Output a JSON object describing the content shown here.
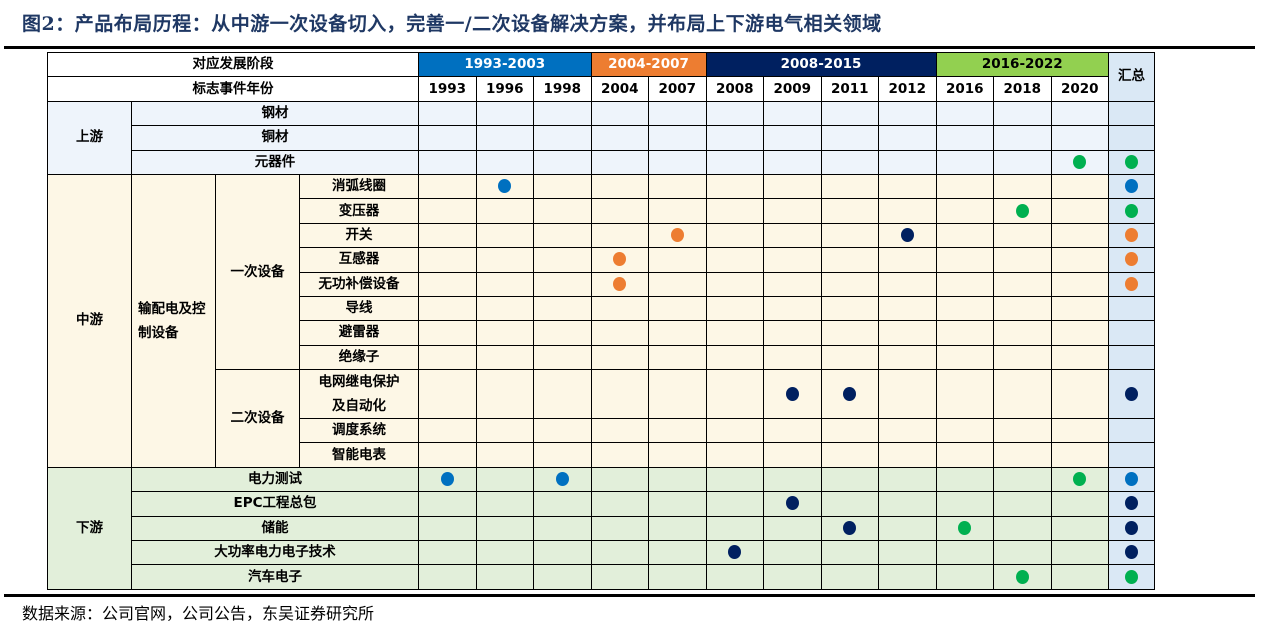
{
  "title": "图2：产品布局历程：从中游一次设备切入，完善一/二次设备解决方案，并布局上下游电气相关领域",
  "source": "数据来源：公司官网，公司公告，东吴证券研究所",
  "colors": {
    "phase1": "#0070c0",
    "phase2": "#ed7d31",
    "phase3": "#002060",
    "phase4": "#00b050",
    "upstream_bg": "#eef4fb",
    "midstream_bg": "#fdf7e6",
    "downstream_bg": "#e2efda",
    "summary_bg": "#dae8f5",
    "highlight_text": "#e8001c"
  },
  "header": {
    "stage_label": "对应发展阶段",
    "year_label": "标志事件年份",
    "summary_label": "汇总",
    "phases": [
      {
        "label": "1993-2003",
        "span": 3
      },
      {
        "label": "2004-2007",
        "span": 2
      },
      {
        "label": "2008-2015",
        "span": 4
      },
      {
        "label": "2016-2022",
        "span": 3
      }
    ],
    "years": [
      "1993",
      "1996",
      "1998",
      "2004",
      "2007",
      "2008",
      "2009",
      "2011",
      "2012",
      "2016",
      "2018",
      "2020"
    ]
  },
  "sections": {
    "upstream": {
      "label": "上游"
    },
    "midstream": {
      "label": "中游",
      "category": "输配电及控制设备",
      "primary": "一次设备",
      "secondary": "二次设备"
    },
    "downstream": {
      "label": "下游"
    }
  },
  "rows": [
    {
      "section": "upstream",
      "label": "钢材",
      "highlight": false,
      "marks": {},
      "summary": null
    },
    {
      "section": "upstream",
      "label": "铜材",
      "highlight": false,
      "marks": {},
      "summary": null
    },
    {
      "section": "upstream",
      "label": "元器件",
      "highlight": true,
      "marks": {
        "2020": "phase4"
      },
      "summary": "phase4"
    },
    {
      "section": "midstream",
      "group": "一次设备",
      "label": "消弧线圈",
      "highlight": true,
      "marks": {
        "1996": "phase1"
      },
      "summary": "phase1"
    },
    {
      "section": "midstream",
      "group": "一次设备",
      "label": "变压器",
      "highlight": true,
      "marks": {
        "2018": "phase4"
      },
      "summary": "phase4"
    },
    {
      "section": "midstream",
      "group": "一次设备",
      "label": "开关",
      "highlight": true,
      "marks": {
        "2007": "phase2",
        "2012": "phase3"
      },
      "summary": "phase2"
    },
    {
      "section": "midstream",
      "group": "一次设备",
      "label": "互感器",
      "highlight": true,
      "marks": {
        "2004": "phase2"
      },
      "summary": "phase2"
    },
    {
      "section": "midstream",
      "group": "一次设备",
      "label": "无功补偿设备",
      "highlight": true,
      "marks": {
        "2004": "phase2"
      },
      "summary": "phase2"
    },
    {
      "section": "midstream",
      "group": "一次设备",
      "label": "导线",
      "highlight": false,
      "marks": {},
      "summary": null
    },
    {
      "section": "midstream",
      "group": "一次设备",
      "label": "避雷器",
      "highlight": false,
      "marks": {},
      "summary": null
    },
    {
      "section": "midstream",
      "group": "一次设备",
      "label": "绝缘子",
      "highlight": false,
      "marks": {},
      "summary": null
    },
    {
      "section": "midstream",
      "group": "二次设备",
      "label": "电网继电保护及自动化",
      "label_lines": [
        "电网继电保护",
        "及自动化"
      ],
      "highlight": true,
      "marks": {
        "2009": "phase3",
        "2011": "phase3"
      },
      "summary": "phase3"
    },
    {
      "section": "midstream",
      "group": "二次设备",
      "label": "调度系统",
      "highlight": false,
      "marks": {},
      "summary": null
    },
    {
      "section": "midstream",
      "group": "二次设备",
      "label": "智能电表",
      "highlight": false,
      "marks": {},
      "summary": null
    },
    {
      "section": "downstream",
      "label": "电力测试",
      "highlight": true,
      "marks": {
        "1993": "phase1",
        "1998": "phase1",
        "2020": "phase4"
      },
      "summary": "phase1"
    },
    {
      "section": "downstream",
      "label": "EPC工程总包",
      "highlight": true,
      "marks": {
        "2009": "phase3"
      },
      "summary": "phase3"
    },
    {
      "section": "downstream",
      "label": "储能",
      "highlight": true,
      "marks": {
        "2011": "phase3",
        "2016": "phase4"
      },
      "summary": "phase3"
    },
    {
      "section": "downstream",
      "label": "大功率电力电子技术",
      "highlight": true,
      "marks": {
        "2008": "phase3"
      },
      "summary": "phase3"
    },
    {
      "section": "downstream",
      "label": "汽车电子",
      "highlight": true,
      "marks": {
        "2018": "phase4"
      },
      "summary": "phase4"
    }
  ],
  "legend_icons": {
    "dot": "filled-circle-icon"
  }
}
